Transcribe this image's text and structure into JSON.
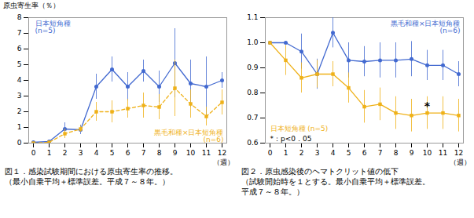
{
  "chart_data": [
    {
      "type": "line",
      "title": "図１．感染試験期間における原虫寄生率の推移。",
      "subtitle": [
        "（最小自乗平均＋標準誤差。平成７～８年。）"
      ],
      "xlabel": "（週）",
      "ylabel": "原虫寄生率（％）",
      "xlim": [
        -0.3,
        12.3
      ],
      "ylim": [
        0,
        8
      ],
      "xticks": [
        0,
        1,
        2,
        3,
        4,
        5,
        6,
        7,
        8,
        9,
        10,
        11,
        12
      ],
      "yticks": [
        0,
        1,
        2,
        3,
        4,
        5,
        6,
        7,
        8
      ],
      "grid": false,
      "series": [
        {
          "name": "日本短角種",
          "subname": "(n=5)",
          "marker": "circle",
          "line_style": "solid",
          "x": [
            0,
            1,
            2,
            3,
            4,
            5,
            6,
            7,
            8,
            9,
            10,
            11,
            12
          ],
          "values": [
            0.05,
            0.1,
            0.9,
            0.85,
            3.6,
            4.7,
            3.6,
            4.6,
            3.6,
            5.1,
            3.8,
            3.6,
            4.0
          ],
          "errors": [
            0.02,
            0.05,
            0.4,
            0.3,
            0.8,
            0.8,
            0.9,
            0.7,
            1.0,
            2.2,
            1.5,
            1.9,
            0.5
          ]
        },
        {
          "name": "黒毛和種×日本短角種",
          "subname": "(n=6)",
          "marker": "square",
          "line_style": "dashed",
          "x": [
            0,
            1,
            2,
            3,
            4,
            5,
            6,
            7,
            8,
            9,
            10,
            11,
            12
          ],
          "values": [
            0.0,
            0.05,
            0.6,
            0.9,
            2.0,
            2.0,
            2.2,
            2.4,
            2.3,
            3.5,
            2.5,
            1.7,
            2.6
          ],
          "errors": [
            0.0,
            0.05,
            0.3,
            0.2,
            0.6,
            0.7,
            0.6,
            0.8,
            0.8,
            1.8,
            0.9,
            0.6,
            0.8
          ]
        }
      ]
    },
    {
      "type": "line",
      "title": "図２．原虫感染後のヘマトクリット値の低下",
      "subtitle": [
        "（試験開始時を１とする。最小自乗平均＋標準誤差。",
        "平成７～８年。）"
      ],
      "xlabel": "（週）",
      "xlim": [
        -0.3,
        12.3
      ],
      "ylim": [
        0.6,
        1.1
      ],
      "xticks": [
        0,
        1,
        2,
        3,
        4,
        5,
        6,
        7,
        8,
        9,
        10,
        11,
        12
      ],
      "yticks": [
        0.6,
        0.7,
        0.8,
        0.9,
        {
          "value": 1.0,
          "label": "1.0"
        },
        1.1
      ],
      "grid": false,
      "series": [
        {
          "name": "黒毛和種×日本短角種",
          "subname": "(n=6)",
          "marker": "circle",
          "line_style": "solid",
          "x": [
            0,
            1,
            2,
            3,
            4,
            5,
            6,
            7,
            8,
            9,
            10,
            11,
            12
          ],
          "values": [
            1.0,
            1.0,
            0.965,
            0.875,
            1.04,
            0.93,
            0.925,
            0.93,
            0.93,
            0.935,
            0.91,
            0.91,
            0.875
          ],
          "errors": [
            0.0,
            0.0,
            0.07,
            0.06,
            0.06,
            0.07,
            0.06,
            0.07,
            0.07,
            0.07,
            0.06,
            0.06,
            0.05
          ]
        },
        {
          "name": "日本短角種 (n=5)",
          "marker": "square",
          "line_style": "solid",
          "x": [
            0,
            1,
            2,
            3,
            4,
            5,
            6,
            7,
            8,
            9,
            10,
            11,
            12
          ],
          "values": [
            1.0,
            0.93,
            0.86,
            0.875,
            0.875,
            0.82,
            0.745,
            0.755,
            0.72,
            0.71,
            0.72,
            0.72,
            0.71
          ],
          "errors": [
            0.0,
            0.06,
            0.06,
            0.055,
            0.05,
            0.06,
            0.065,
            0.065,
            0.065,
            0.065,
            0.065,
            0.065,
            0.065
          ]
        }
      ],
      "annotations": [
        {
          "text": "*",
          "x": 10,
          "y": 0.745
        },
        {
          "text": "*：p<0．05"
        }
      ]
    }
  ]
}
